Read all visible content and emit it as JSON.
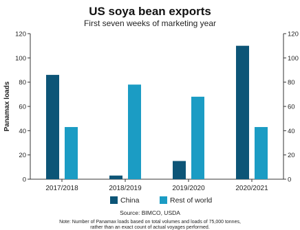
{
  "chart_data": {
    "type": "bar",
    "title": "US soya bean exports",
    "subtitle": "First seven weeks of marketing year",
    "ylabel": "Panamax loads",
    "ylim": [
      0,
      120
    ],
    "yticks": [
      0,
      20,
      40,
      60,
      80,
      100,
      120
    ],
    "categories": [
      "2017/2018",
      "2018/2019",
      "2019/2020",
      "2020/2021"
    ],
    "series": [
      {
        "name": "China",
        "color": "#0d5577",
        "values": [
          86,
          3,
          15,
          110
        ]
      },
      {
        "name": "Rest of world",
        "color": "#1b9cc4",
        "values": [
          43,
          78,
          68,
          43
        ]
      }
    ],
    "legend_position": "bottom",
    "grid": false,
    "source": "Source: BIMCO, USDA",
    "note_lines": [
      "Note: Number of Panamax loads based on total volumes and loads of 75,000 tonnes,",
      "rather than an exact count of actual voyages performed."
    ]
  }
}
